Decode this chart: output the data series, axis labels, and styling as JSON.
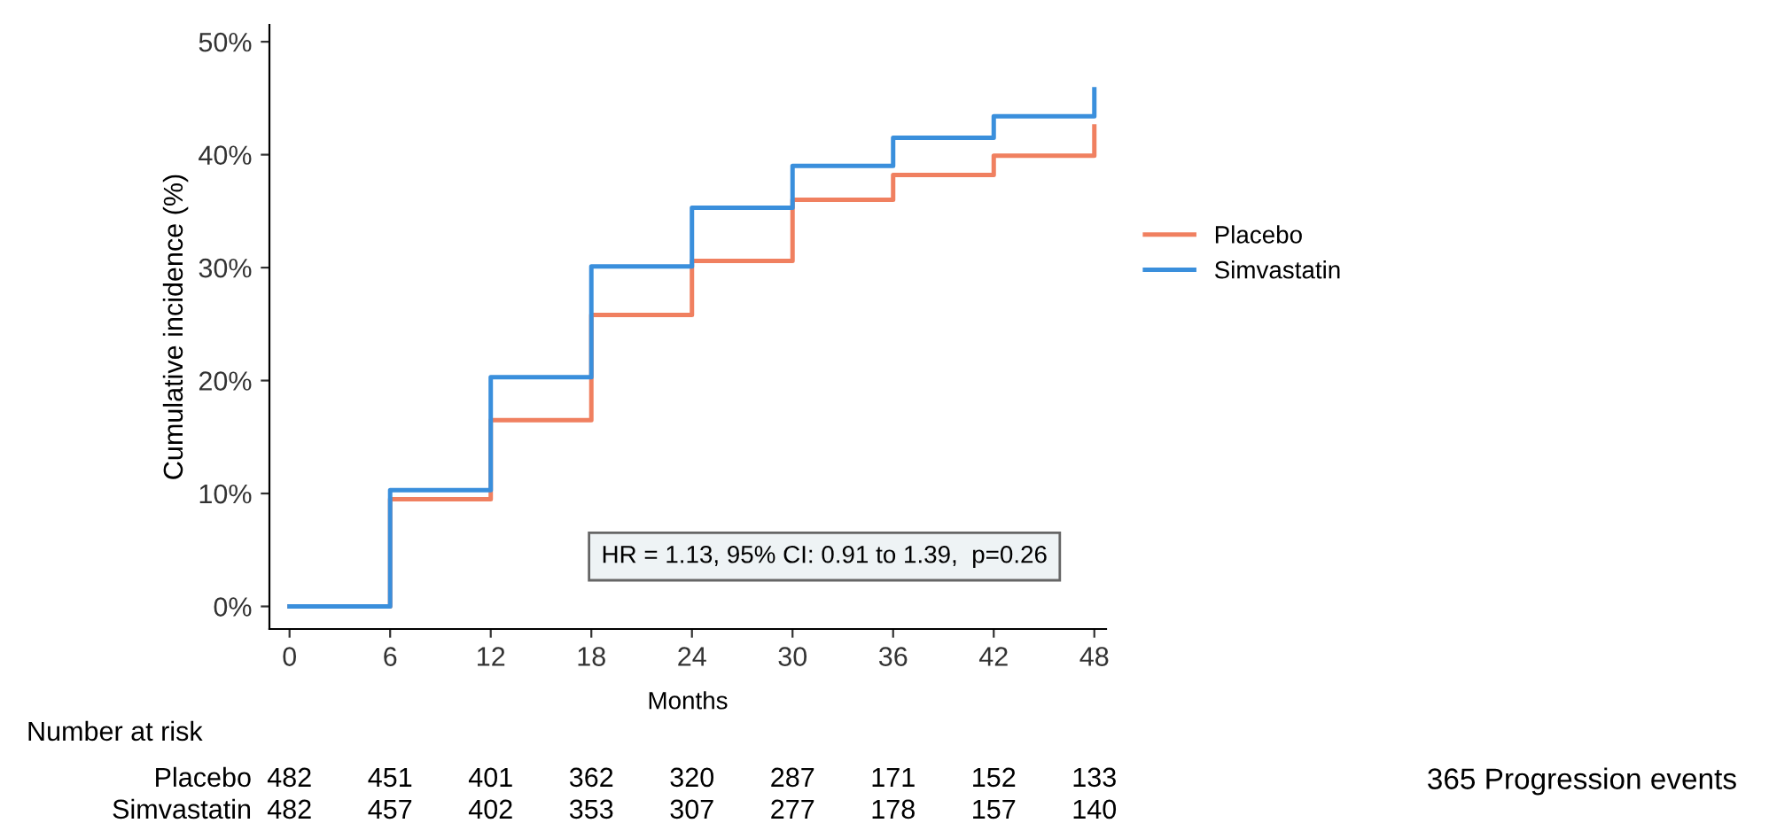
{
  "chart_data": {
    "type": "step",
    "xlabel": "Months",
    "ylabel": "Cumulative incidence (%)",
    "series": [
      {
        "name": "Placebo",
        "color": "#f08060",
        "x": [
          0,
          6,
          12,
          18,
          24,
          30,
          36,
          42,
          48,
          48
        ],
        "values": [
          0,
          9.5,
          16.5,
          25.8,
          30.6,
          36.0,
          38.2,
          39.9,
          39.9,
          42.5
        ]
      },
      {
        "name": "Simvastatin",
        "color": "#3a8fdc",
        "x": [
          0,
          6,
          12,
          18,
          24,
          30,
          36,
          42,
          48,
          48
        ],
        "values": [
          0,
          10.3,
          20.3,
          30.1,
          35.3,
          39.0,
          41.5,
          43.4,
          43.4,
          45.8
        ]
      }
    ],
    "xlim": [
      -1.2,
      48.7
    ],
    "xticks": [
      0,
      6,
      12,
      18,
      24,
      30,
      36,
      42,
      48
    ],
    "ylim": [
      -2,
      51.5
    ],
    "yticks": [
      {
        "value": 0,
        "label": "0%"
      },
      {
        "value": 10,
        "label": "10%"
      },
      {
        "value": 20,
        "label": "20%"
      },
      {
        "value": 30,
        "label": "30%"
      },
      {
        "value": 40,
        "label": "40%"
      },
      {
        "value": 50,
        "label": "50%"
      }
    ],
    "grid": false,
    "legend": "right",
    "line_style": "solid",
    "marker": "none",
    "annotations": [
      "HR = 1.13, 95% CI: 0.91 to 1.39,  p=0.26",
      "Number at risk",
      "Placebo",
      "Simvastatin",
      "482 451 401 362 320 287 171 152 133",
      "482 457 402 353 307 277 178 157 140",
      "365 Progression events"
    ]
  }
}
